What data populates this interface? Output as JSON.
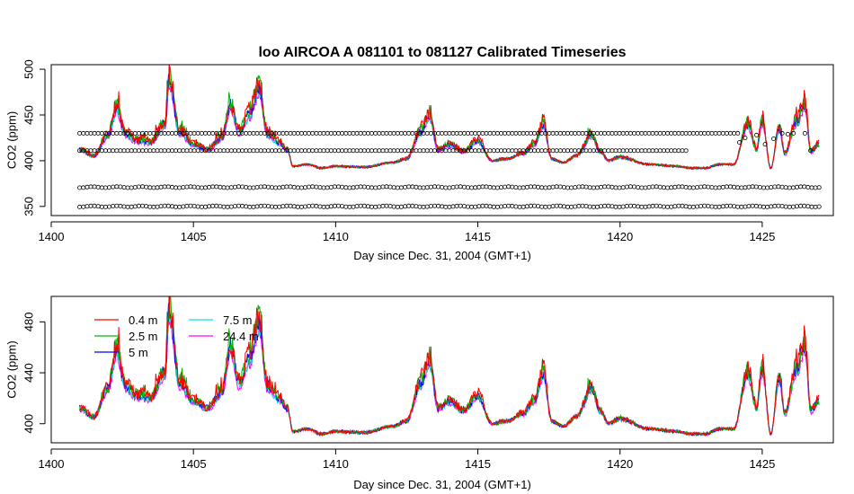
{
  "chart_data": [
    {
      "type": "line",
      "title": "loo   AIRCOA  A    081101  to  081127   Calibrated Timeseries",
      "xlabel": "Day since Dec. 31, 2004 (GMT+1)",
      "ylabel": "CO2 (ppm)",
      "xlim": [
        1400,
        1427.5
      ],
      "ylim": [
        340,
        505
      ],
      "x_ticks": [
        "1400",
        "1405",
        "1410",
        "1415",
        "1420",
        "1425"
      ],
      "y_ticks": [
        "350",
        "400",
        "450",
        "500"
      ],
      "grid": false,
      "colors": [
        "#ff0000",
        "#00bb00",
        "#0000ff",
        "#00e5e5",
        "#ff00ff"
      ],
      "key_points": {
        "x": [
          1401.0,
          1401.5,
          1402.0,
          1402.3,
          1402.6,
          1403.0,
          1403.5,
          1404.0,
          1404.15,
          1404.5,
          1405.0,
          1405.5,
          1406.0,
          1406.3,
          1406.6,
          1407.0,
          1407.3,
          1407.6,
          1408.0,
          1408.3,
          1408.5,
          1409.0,
          1409.5,
          1410.0,
          1411.0,
          1412.0,
          1412.5,
          1413.0,
          1413.3,
          1413.6,
          1414.0,
          1414.5,
          1415.0,
          1415.5,
          1416.0,
          1416.6,
          1417.0,
          1417.3,
          1417.6,
          1418.0,
          1418.5,
          1419.0,
          1419.3,
          1419.6,
          1420.0,
          1421.0,
          1422.0,
          1422.5,
          1423.0,
          1423.5,
          1424.0,
          1424.5,
          1424.8,
          1425.0,
          1425.3,
          1425.6,
          1425.8,
          1426.2,
          1426.5,
          1426.7,
          1427.0
        ],
        "y": [
          412,
          405,
          428,
          458,
          430,
          422,
          420,
          440,
          488,
          432,
          418,
          412,
          425,
          460,
          432,
          452,
          480,
          430,
          420,
          412,
          394,
          396,
          392,
          394,
          393,
          398,
          402,
          432,
          450,
          412,
          418,
          410,
          422,
          400,
          402,
          408,
          418,
          440,
          402,
          398,
          406,
          428,
          410,
          400,
          404,
          396,
          394,
          392,
          392,
          396,
          396,
          440,
          412,
          444,
          392,
          436,
          408,
          442,
          462,
          410,
          418
        ]
      },
      "point_rows": [
        {
          "y": 430,
          "x_start": 1401.0,
          "x_end": 1424.2
        },
        {
          "y": 411,
          "x_start": 1401.0,
          "x_end": 1422.4
        },
        {
          "y": 371,
          "x_start": 1401.0,
          "x_end": 1427.0
        },
        {
          "y": 350,
          "x_start": 1401.0,
          "x_end": 1427.0
        }
      ]
    },
    {
      "type": "line",
      "title": "",
      "xlabel": "Day since Dec. 31, 2004 (GMT+1)",
      "ylabel": "CO2 (ppm)",
      "xlim": [
        1400,
        1427.5
      ],
      "ylim": [
        385,
        500
      ],
      "x_ticks": [
        "1400",
        "1405",
        "1410",
        "1415",
        "1420",
        "1425"
      ],
      "y_ticks": [
        "400",
        "440",
        "480"
      ],
      "grid": false,
      "legend_position": "top-left",
      "series": [
        {
          "name": "0.4 m",
          "color": "#ff0000"
        },
        {
          "name": "2.5 m",
          "color": "#00bb00"
        },
        {
          "name": "5 m",
          "color": "#0000ff"
        },
        {
          "name": "7.5 m",
          "color": "#00e5e5"
        },
        {
          "name": "24.4 m",
          "color": "#ff00ff"
        }
      ],
      "key_points": {
        "x": [
          1401.0,
          1401.5,
          1402.0,
          1402.3,
          1402.6,
          1403.0,
          1403.5,
          1404.0,
          1404.15,
          1404.5,
          1405.0,
          1405.5,
          1406.0,
          1406.3,
          1406.6,
          1407.0,
          1407.3,
          1407.6,
          1408.0,
          1408.3,
          1408.5,
          1409.0,
          1409.5,
          1410.0,
          1411.0,
          1412.0,
          1412.5,
          1413.0,
          1413.3,
          1413.6,
          1414.0,
          1414.5,
          1415.0,
          1415.5,
          1416.0,
          1416.6,
          1417.0,
          1417.3,
          1417.6,
          1418.0,
          1418.5,
          1419.0,
          1419.3,
          1419.6,
          1420.0,
          1421.0,
          1422.0,
          1422.5,
          1423.0,
          1423.5,
          1424.0,
          1424.5,
          1424.8,
          1425.0,
          1425.3,
          1425.6,
          1425.8,
          1426.2,
          1426.5,
          1426.7,
          1427.0
        ],
        "y": [
          412,
          405,
          428,
          458,
          430,
          422,
          420,
          440,
          488,
          432,
          418,
          412,
          425,
          460,
          432,
          452,
          480,
          430,
          420,
          412,
          394,
          396,
          392,
          394,
          393,
          398,
          402,
          432,
          450,
          412,
          418,
          410,
          422,
          400,
          402,
          408,
          418,
          440,
          402,
          398,
          406,
          428,
          410,
          400,
          404,
          396,
          394,
          392,
          392,
          396,
          396,
          440,
          412,
          444,
          392,
          436,
          408,
          442,
          462,
          410,
          418
        ]
      }
    }
  ]
}
